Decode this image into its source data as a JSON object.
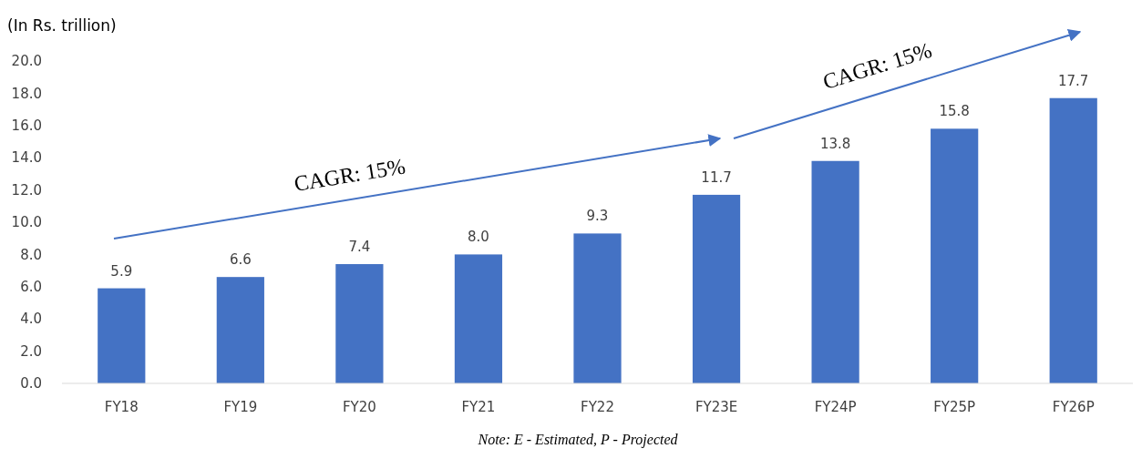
{
  "chart_data": {
    "type": "bar",
    "ylabel": "(In Rs. trillion)",
    "categories": [
      "FY18",
      "FY19",
      "FY20",
      "FY21",
      "FY22",
      "FY23E",
      "FY24P",
      "FY25P",
      "FY26P"
    ],
    "values": [
      5.9,
      6.6,
      7.4,
      8.0,
      9.3,
      11.7,
      13.8,
      15.8,
      17.7
    ],
    "value_labels": [
      "5.9",
      "6.6",
      "7.4",
      "8.0",
      "9.3",
      "11.7",
      "13.8",
      "15.8",
      "17.7"
    ],
    "color": "#4472c4",
    "ylim": [
      0,
      20
    ],
    "yticks": [
      {
        "value": 0,
        "label": "0.0"
      },
      {
        "value": 2,
        "label": "2.0"
      },
      {
        "value": 4,
        "label": "4.0"
      },
      {
        "value": 6,
        "label": "6.0"
      },
      {
        "value": 8,
        "label": "8.0"
      },
      {
        "value": 10,
        "label": "10.0"
      },
      {
        "value": 12,
        "label": "12.0"
      },
      {
        "value": 14,
        "label": "14.0"
      },
      {
        "value": 16,
        "label": "16.0"
      },
      {
        "value": 18,
        "label": "18.0"
      },
      {
        "value": 20,
        "label": "20.0"
      }
    ],
    "grid": false,
    "annotations": [
      "CAGR: 15%",
      "CAGR: 15%",
      "Note: E - Estimated, P - Projected"
    ]
  }
}
